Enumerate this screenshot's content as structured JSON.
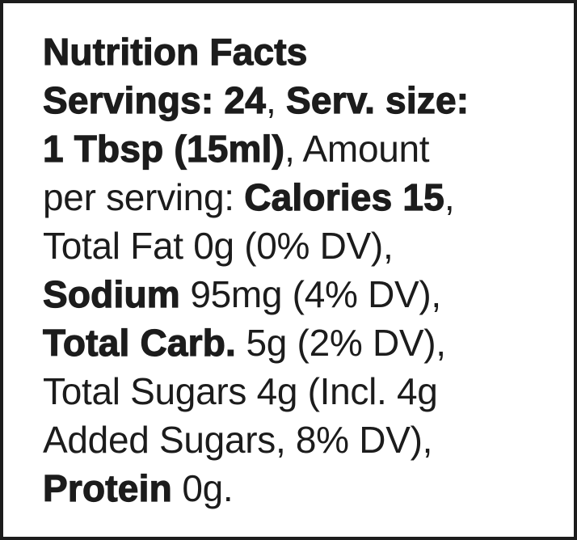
{
  "title": "Nutrition Facts",
  "servings_label": "Servings: 24",
  "serving_size_label": "Serv. size:",
  "serving_size_value": "1 Tbsp (15ml)",
  "amount_intro": "Amount",
  "amount_intro2": "per serving:",
  "calories": "Calories 15",
  "total_fat": "Total Fat 0g (0% DV),",
  "sodium_label": "Sodium",
  "sodium_value": " 95mg (4% DV),",
  "carb_label": "Total Carb.",
  "carb_value": " 5g (2% DV),",
  "sugars_line1": "Total Sugars 4g (Incl. 4g",
  "sugars_line2": "Added Sugars, 8% DV),",
  "protein_label": "Protein",
  "protein_value": " 0g.",
  "comma": ", ",
  "comma_end": ","
}
